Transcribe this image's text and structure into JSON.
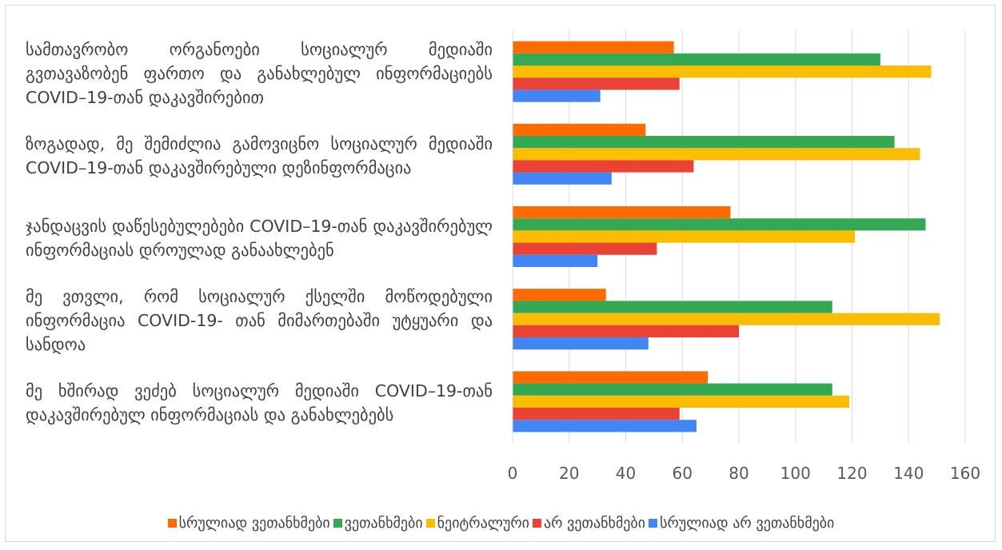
{
  "chart_data": {
    "type": "bar",
    "orientation": "horizontal",
    "categories": [
      "მე ხშირად ვეძებ სოციალურ მედიაში COVID–19-თან დაკავშირებულ ინფორმაციას და განახლებებს",
      "მე ვთვლი, რომ სოციალურ ქსელში მოწოდებული ინფორმაცია COVID-19- თან მიმართებაში უტყუარი და სანდოა",
      "ჯანდაცვის დაწესებულებები COVID–19-თან დაკავშირებულ ინფორმაციას დროულად განაახლებენ",
      "ზოგადად, მე შემიძლია გამოვიცნო სოციალურ მედიაში COVID–19-თან დაკავშირებული დეზინფორმაცია",
      "სამთავრობო ორგანოები სოციალურ მედიაში გვთავაზობენ ფართო და განახლებულ ინფორმაციებს COVID–19-თან დაკავშირებით"
    ],
    "series": [
      {
        "name": "სრულიად ვეთანხმები",
        "color": "#ff6b00",
        "values": [
          69,
          33,
          77,
          47,
          57
        ]
      },
      {
        "name": "ვეთანხმები",
        "color": "#34a853",
        "values": [
          113,
          113,
          146,
          135,
          130
        ]
      },
      {
        "name": "ნეიტრალური",
        "color": "#fbbc04",
        "values": [
          119,
          151,
          121,
          144,
          148
        ]
      },
      {
        "name": "არ ვეთანხმები",
        "color": "#ea4335",
        "values": [
          59,
          80,
          51,
          64,
          59
        ]
      },
      {
        "name": "სრულიად არ ვეთანხმები",
        "color": "#4285f4",
        "values": [
          65,
          48,
          30,
          35,
          31
        ]
      }
    ],
    "xlim": [
      0,
      160
    ],
    "ticks": [
      0,
      20,
      40,
      60,
      80,
      100,
      120,
      140,
      160
    ],
    "grid": true,
    "legend_position": "bottom",
    "xlabel": "",
    "ylabel": "",
    "title": ""
  }
}
